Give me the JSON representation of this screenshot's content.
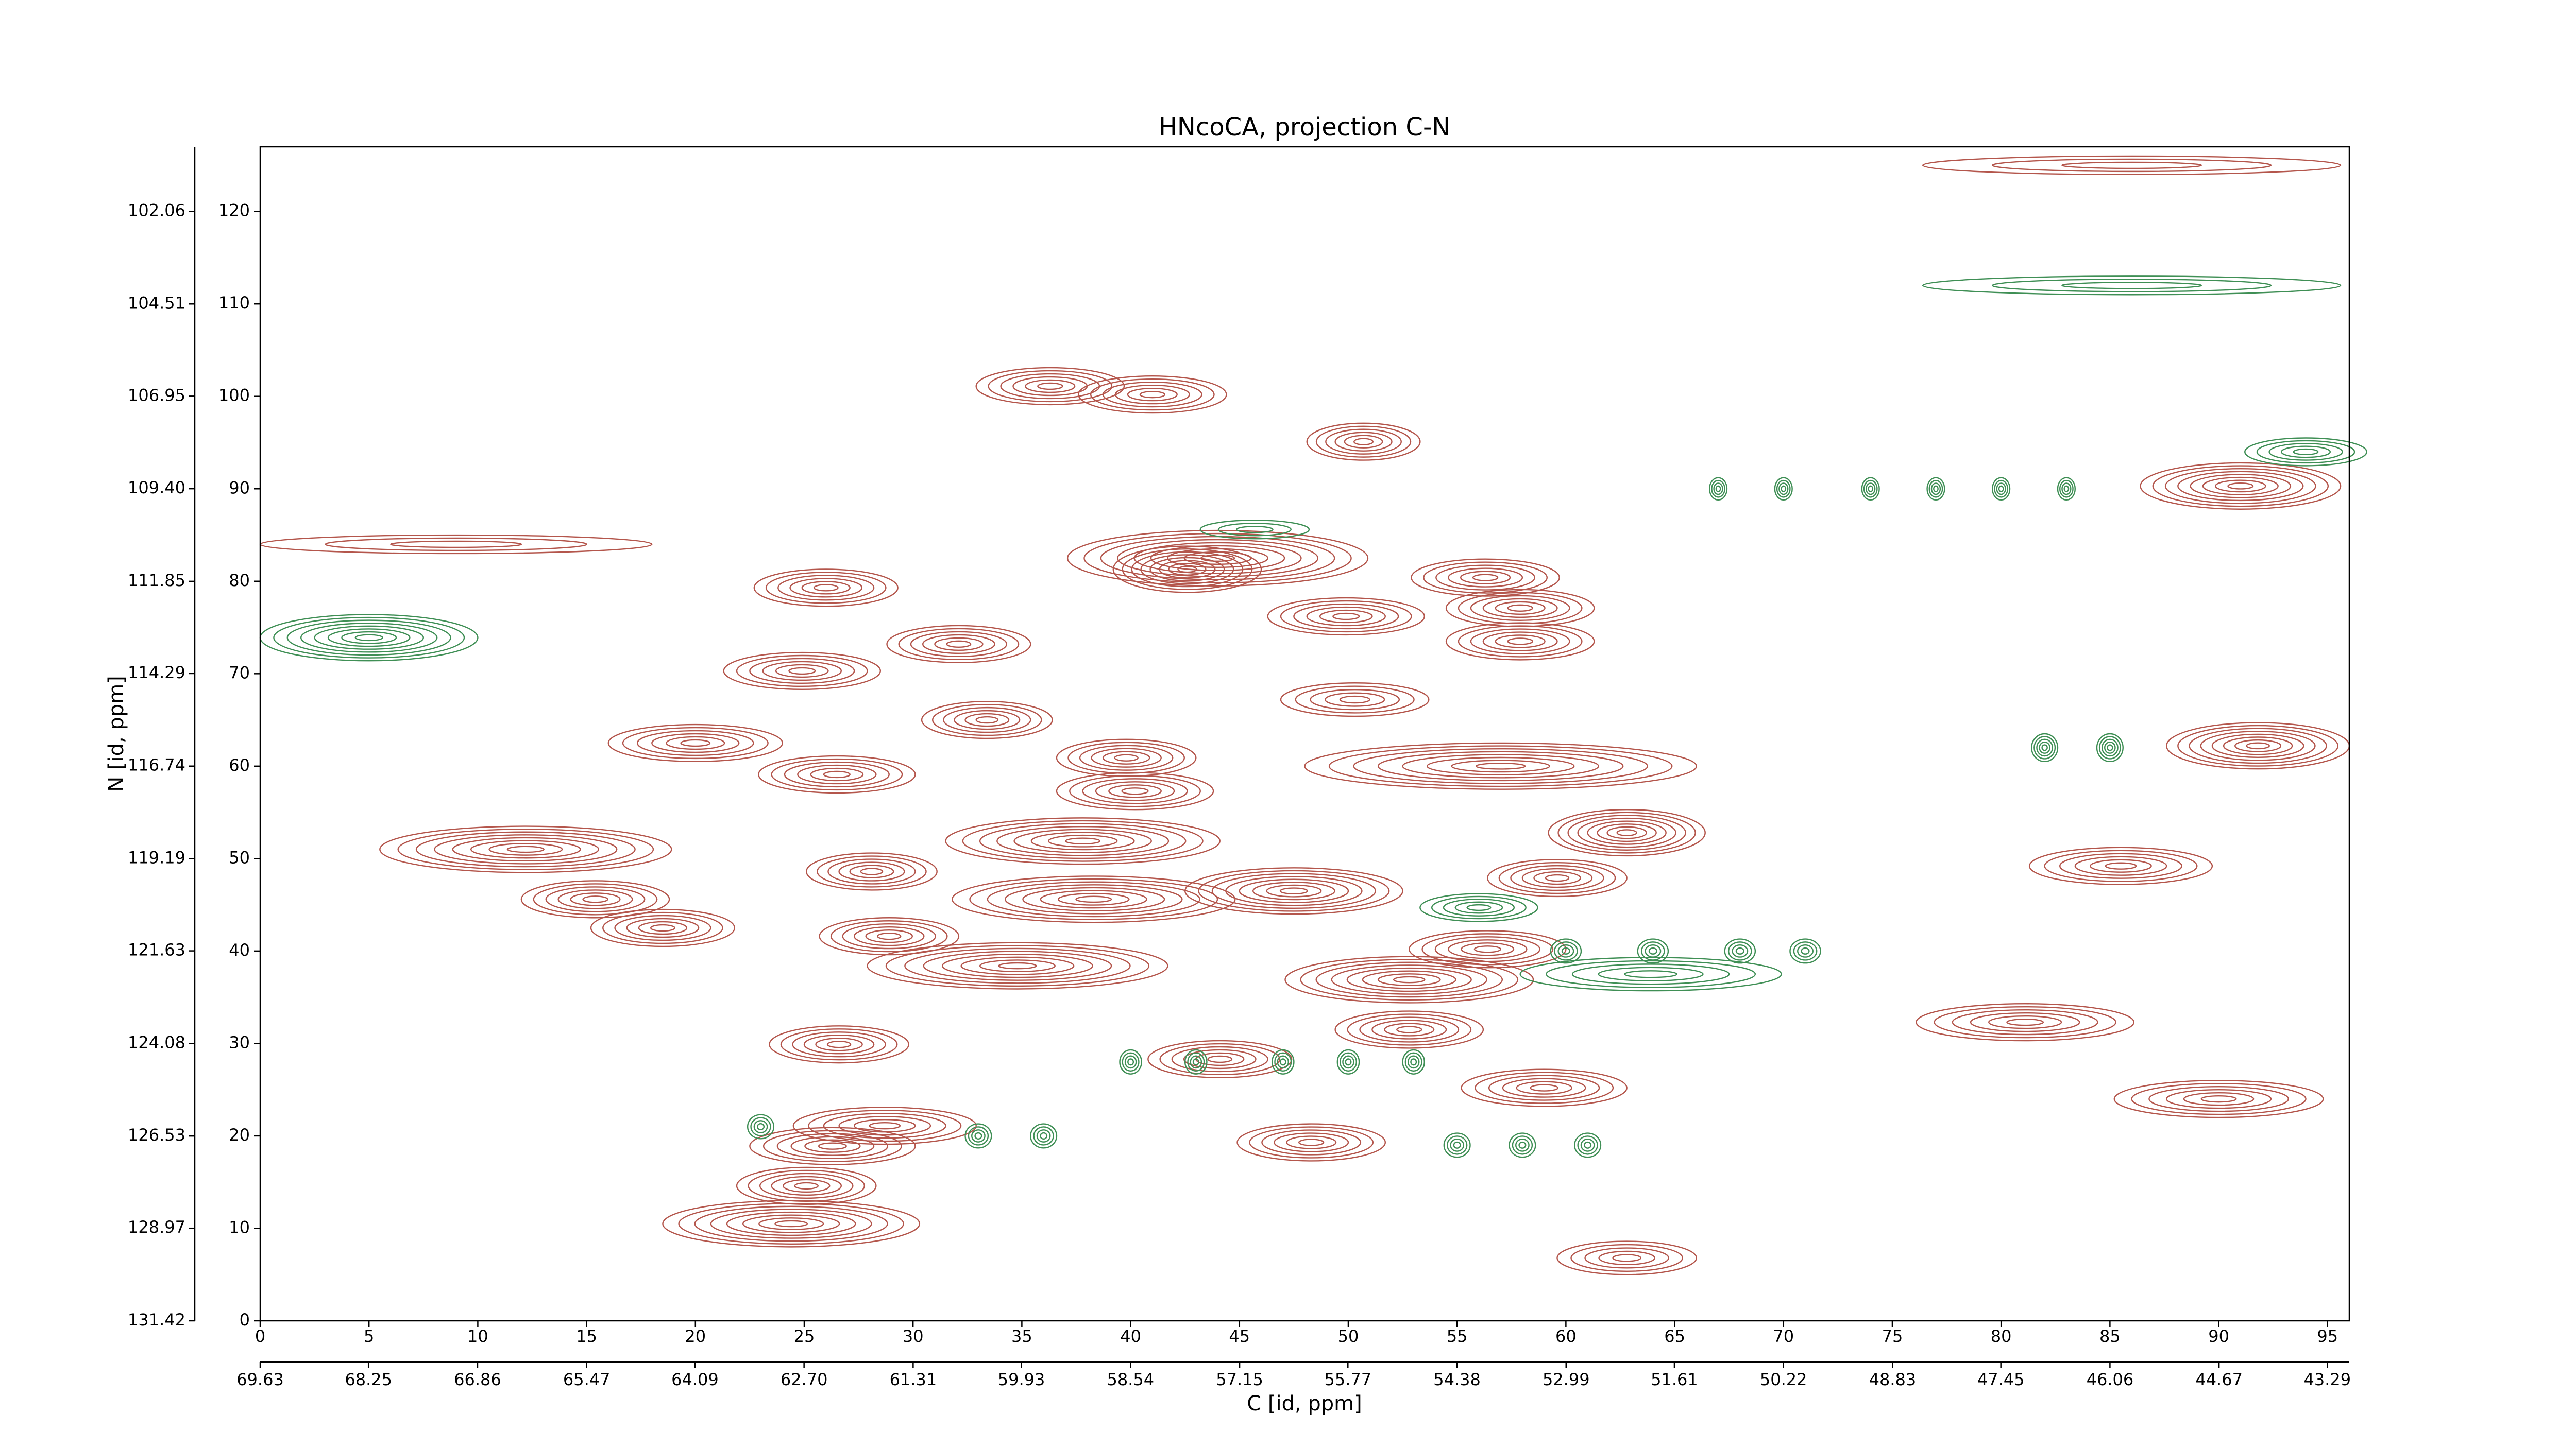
{
  "chart_data": {
    "type": "contour",
    "title": "HNcoCA, projection C-N",
    "x_label": "C [id, ppm]",
    "y_label": "N [id, ppm]",
    "xlim": [
      0,
      96
    ],
    "ylim": [
      0,
      127
    ],
    "xticks": [
      0,
      5,
      10,
      15,
      20,
      25,
      30,
      35,
      40,
      45,
      50,
      55,
      60,
      65,
      70,
      75,
      80,
      85,
      90,
      95
    ],
    "yticks": [
      0,
      10,
      20,
      30,
      40,
      50,
      60,
      70,
      80,
      90,
      100,
      110,
      120
    ],
    "x2lim": [
      69.63,
      43.01
    ],
    "x2ticks": [
      69.63,
      68.25,
      66.86,
      65.47,
      64.09,
      {
        "value": 62.7,
        "label": "62.70"
      },
      61.31,
      59.93,
      58.54,
      57.15,
      55.77,
      54.38,
      52.99,
      51.61,
      50.22,
      48.83,
      47.45,
      46.06,
      44.67,
      43.29
    ],
    "y2lim": [
      131.42,
      100.35
    ],
    "y2ticks": [
      131.42,
      128.97,
      126.53,
      124.08,
      121.63,
      119.19,
      116.74,
      114.29,
      111.85,
      {
        "value": 109.4,
        "label": "109.40"
      },
      106.95,
      104.51,
      102.06
    ],
    "series": [
      {
        "color": "#b4564c",
        "x": [
          36.3,
          41.0,
          50.7,
          91.0,
          44.0,
          42.6,
          26.0,
          56.3,
          49.9,
          57.9,
          57.9,
          32.1,
          24.9,
          50.3,
          33.4,
          20.0,
          91.8,
          39.8,
          26.5,
          40.2,
          57.0,
          12.2,
          28.1,
          37.8,
          62.8,
          59.6,
          85.5,
          15.4,
          38.3,
          47.5,
          18.5,
          28.9,
          56.4,
          52.8,
          34.8,
          81.1,
          26.6,
          44.1,
          52.8,
          59.0,
          90.0,
          28.7,
          26.3,
          48.3,
          25.1,
          24.4,
          62.8,
          9.0,
          86.0
        ],
        "y": [
          101.1,
          100.2,
          95.1,
          90.3,
          82.5,
          81.3,
          79.3,
          80.4,
          76.2,
          77.1,
          73.5,
          73.2,
          70.3,
          67.2,
          65.0,
          62.5,
          62.2,
          60.9,
          59.1,
          57.3,
          60.0,
          51.0,
          48.6,
          51.9,
          52.8,
          47.9,
          49.2,
          45.6,
          45.6,
          46.5,
          42.5,
          41.6,
          40.2,
          36.9,
          38.4,
          32.3,
          29.9,
          28.3,
          31.5,
          25.2,
          24.0,
          21.1,
          18.9,
          19.3,
          14.6,
          10.5,
          6.8,
          84.0,
          125.0
        ],
        "x_halfwidth": [
          3.4,
          3.4,
          2.6,
          4.6,
          6.9,
          3.4,
          3.3,
          3.4,
          3.6,
          3.4,
          3.4,
          3.3,
          3.6,
          3.4,
          3.0,
          4.0,
          4.2,
          3.2,
          3.6,
          3.6,
          9.0,
          6.7,
          3.0,
          6.3,
          3.6,
          3.2,
          4.2,
          3.4,
          6.5,
          5.0,
          3.3,
          3.2,
          3.6,
          5.7,
          6.9,
          5.0,
          3.2,
          3.3,
          3.4,
          3.8,
          4.8,
          4.2,
          3.8,
          3.4,
          3.2,
          5.9,
          3.2,
          9.0,
          9.6
        ],
        "y_halfwidth": [
          2,
          2,
          2,
          2.5,
          3,
          2.5,
          2,
          2,
          2,
          2,
          2,
          2,
          2,
          1.8,
          2,
          2,
          2.5,
          2,
          2,
          2,
          2.5,
          2.5,
          2,
          2.5,
          2.5,
          2,
          2,
          2,
          2.5,
          2.5,
          2,
          2,
          2,
          2.5,
          2.5,
          2,
          2,
          2,
          2,
          2,
          2,
          2,
          2,
          2,
          2,
          2.5,
          1.8,
          1,
          1
        ]
      },
      {
        "color": "#3f8f55",
        "x": [
          5.0,
          86.0,
          94.0,
          45.7,
          63.9,
          56.0,
          67,
          70,
          74,
          77,
          80,
          83,
          82,
          85,
          60,
          64,
          68,
          71,
          40,
          43,
          47,
          50,
          53,
          23,
          33,
          36,
          55,
          58,
          61
        ],
        "y": [
          73.9,
          112.0,
          94.0,
          85.6,
          37.5,
          44.7,
          90,
          90,
          90,
          90,
          90,
          90,
          62,
          62,
          40,
          40,
          40,
          40,
          28,
          28,
          28,
          28,
          28,
          21,
          20,
          20,
          19,
          19,
          19
        ],
        "x_halfwidth": [
          5,
          9.6,
          2.8,
          2.5,
          6,
          2.7,
          0.4,
          0.4,
          0.4,
          0.4,
          0.4,
          0.4,
          0.6,
          0.6,
          0.7,
          0.7,
          0.7,
          0.7,
          0.5,
          0.5,
          0.5,
          0.5,
          0.5,
          0.6,
          0.6,
          0.6,
          0.6,
          0.6,
          0.6
        ],
        "y_halfwidth": [
          2.5,
          1,
          1.5,
          1,
          1.8,
          1.5,
          1.2,
          1.2,
          1.2,
          1.2,
          1.2,
          1.2,
          1.5,
          1.5,
          1.3,
          1.3,
          1.3,
          1.3,
          1.3,
          1.3,
          1.3,
          1.3,
          1.3,
          1.3,
          1.3,
          1.3,
          1.3,
          1.3,
          1.3
        ]
      }
    ]
  }
}
